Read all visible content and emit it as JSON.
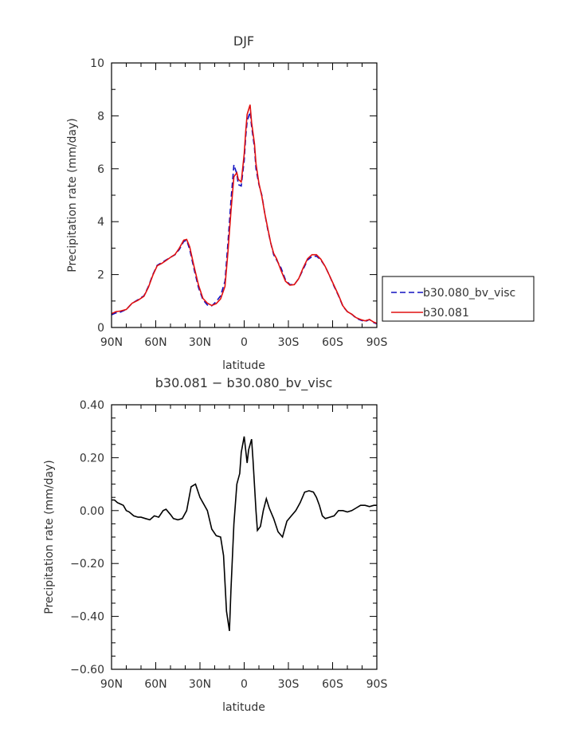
{
  "chart_data": [
    {
      "type": "line",
      "title": "DJF",
      "xlabel": "latitude",
      "ylabel": "Precipitation rate (mm/day)",
      "xlim": [
        90,
        -90
      ],
      "ylim": [
        0,
        10
      ],
      "xticks": [
        90,
        60,
        30,
        0,
        -30,
        -60,
        -90
      ],
      "xtick_labels": [
        "90N",
        "60N",
        "30N",
        "0",
        "30S",
        "60S",
        "90S"
      ],
      "yticks": [
        0,
        2,
        4,
        6,
        8,
        10
      ],
      "ytick_labels": [
        "0",
        "2",
        "4",
        "6",
        "8",
        "10"
      ],
      "grid": false,
      "legend_position": "right",
      "series": [
        {
          "name": "b30.080_bv_visc",
          "color": "#1010c0",
          "style": "dashed",
          "x": [
            90,
            87,
            84,
            80,
            76,
            72,
            68,
            65,
            62,
            59,
            56,
            53,
            50,
            47,
            44,
            41,
            39,
            37,
            34,
            31,
            28,
            25,
            22,
            19,
            16,
            13,
            11,
            9,
            7,
            5,
            4,
            2,
            0,
            -1,
            -2,
            -4,
            -5,
            -7,
            -8,
            -10,
            -12,
            -14,
            -16,
            -18,
            -20,
            -22,
            -25,
            -28,
            -31,
            -34,
            -37,
            -40,
            -43,
            -46,
            -49,
            -52,
            -55,
            -58,
            -61,
            -64,
            -67,
            -70,
            -73,
            -76,
            -79,
            -82,
            -85,
            -88,
            -90
          ],
          "y": [
            0.48,
            0.55,
            0.58,
            0.68,
            0.92,
            1.05,
            1.2,
            1.55,
            2.0,
            2.35,
            2.45,
            2.55,
            2.65,
            2.75,
            2.95,
            3.25,
            3.3,
            2.95,
            2.2,
            1.5,
            1.05,
            0.85,
            0.82,
            0.98,
            1.2,
            1.75,
            3.2,
            4.8,
            6.15,
            5.8,
            5.4,
            5.35,
            6.3,
            7.2,
            7.8,
            8.15,
            7.6,
            6.8,
            6.0,
            5.4,
            5.0,
            4.3,
            3.7,
            3.2,
            2.75,
            2.55,
            2.25,
            1.8,
            1.62,
            1.62,
            1.85,
            2.2,
            2.55,
            2.68,
            2.7,
            2.55,
            2.3,
            1.95,
            1.55,
            1.2,
            0.8,
            0.6,
            0.5,
            0.35,
            0.28,
            0.22,
            0.3,
            0.18,
            0.14
          ]
        },
        {
          "name": "b30.081",
          "color": "#e01010",
          "style": "solid",
          "x": [
            90,
            87,
            84,
            80,
            76,
            72,
            68,
            65,
            62,
            59,
            56,
            53,
            50,
            47,
            44,
            41,
            39,
            37,
            34,
            31,
            28,
            25,
            22,
            19,
            16,
            13,
            11,
            9,
            7,
            5,
            4,
            2,
            0,
            -1,
            -2,
            -4,
            -5,
            -7,
            -8,
            -10,
            -12,
            -14,
            -16,
            -18,
            -20,
            -22,
            -25,
            -28,
            -31,
            -34,
            -37,
            -40,
            -43,
            -46,
            -49,
            -52,
            -55,
            -58,
            -61,
            -64,
            -67,
            -70,
            -73,
            -76,
            -79,
            -82,
            -85,
            -88,
            -90
          ],
          "y": [
            0.52,
            0.6,
            0.62,
            0.68,
            0.92,
            1.03,
            1.18,
            1.52,
            1.97,
            2.33,
            2.42,
            2.53,
            2.65,
            2.76,
            3.0,
            3.3,
            3.33,
            3.05,
            2.3,
            1.6,
            1.1,
            0.92,
            0.83,
            0.9,
            1.08,
            1.55,
            2.85,
            4.4,
            5.7,
            5.85,
            5.6,
            5.5,
            6.55,
            7.4,
            8.05,
            8.42,
            7.75,
            6.95,
            6.2,
            5.45,
            4.95,
            4.3,
            3.75,
            3.2,
            2.8,
            2.6,
            2.15,
            1.75,
            1.6,
            1.62,
            1.85,
            2.25,
            2.6,
            2.75,
            2.75,
            2.58,
            2.3,
            1.95,
            1.58,
            1.22,
            0.82,
            0.6,
            0.5,
            0.37,
            0.3,
            0.25,
            0.3,
            0.2,
            0.16
          ]
        }
      ]
    },
    {
      "type": "line",
      "title": "b30.081 − b30.080_bv_visc",
      "xlabel": "latitude",
      "ylabel": "Precipitation rate (mm/day)",
      "xlim": [
        90,
        -90
      ],
      "ylim": [
        -0.6,
        0.4
      ],
      "xticks": [
        90,
        60,
        30,
        0,
        -30,
        -60,
        -90
      ],
      "xtick_labels": [
        "90N",
        "60N",
        "30N",
        "0",
        "30S",
        "60S",
        "90S"
      ],
      "yticks": [
        -0.6,
        -0.4,
        -0.2,
        0.0,
        0.2,
        0.4
      ],
      "ytick_labels": [
        "−0.60",
        "−0.40",
        "−0.20",
        "0.00",
        "0.20",
        "0.40"
      ],
      "grid": false,
      "series": [
        {
          "color": "#000000",
          "style": "solid",
          "x": [
            90,
            88,
            86,
            84,
            82,
            80,
            78,
            75,
            72,
            70,
            67,
            64,
            61,
            58,
            55,
            53,
            50,
            48,
            45,
            42,
            39,
            36,
            33,
            30,
            28,
            25,
            22,
            19,
            16,
            14,
            12,
            10,
            9,
            7,
            5,
            3,
            2,
            0,
            -2,
            -3,
            -5,
            -6,
            -8,
            -9,
            -11,
            -13,
            -15,
            -17,
            -20,
            -23,
            -26,
            -29,
            -32,
            -35,
            -38,
            -41,
            -44,
            -47,
            -49,
            -51,
            -53,
            -55,
            -58,
            -61,
            -64,
            -67,
            -70,
            -73,
            -76,
            -79,
            -82,
            -85,
            -88,
            -90
          ],
          "y": [
            0.04,
            0.04,
            0.03,
            0.025,
            0.02,
            0.0,
            -0.005,
            -0.02,
            -0.025,
            -0.025,
            -0.03,
            -0.035,
            -0.02,
            -0.025,
            0.0,
            0.005,
            -0.015,
            -0.03,
            -0.035,
            -0.03,
            0.0,
            0.09,
            0.1,
            0.05,
            0.03,
            0.0,
            -0.07,
            -0.095,
            -0.1,
            -0.17,
            -0.38,
            -0.455,
            -0.3,
            -0.05,
            0.1,
            0.14,
            0.22,
            0.28,
            0.18,
            0.23,
            0.27,
            0.19,
            0.0,
            -0.075,
            -0.06,
            0.0,
            0.045,
            0.01,
            -0.03,
            -0.08,
            -0.1,
            -0.04,
            -0.02,
            0.0,
            0.03,
            0.07,
            0.075,
            0.07,
            0.05,
            0.02,
            -0.02,
            -0.03,
            -0.025,
            -0.02,
            0.0,
            0.0,
            -0.005,
            0.0,
            0.01,
            0.02,
            0.02,
            0.015,
            0.02,
            0.02
          ]
        }
      ]
    }
  ]
}
